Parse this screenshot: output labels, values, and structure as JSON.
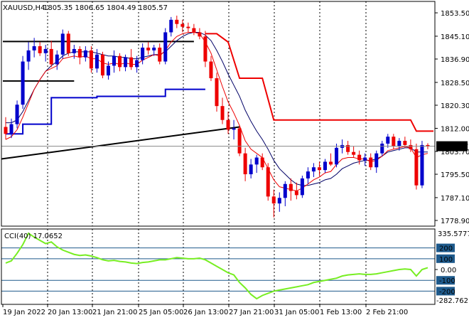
{
  "header": {
    "symbol": "XAUUSD,H4",
    "ohlc": "1805.35 1806.65 1804.49 1805.57"
  },
  "cci_header": "CCI(40) 17.0652",
  "colors": {
    "bull": "#0000cc",
    "bear": "#ee0000",
    "fast_ma": "#ee0000",
    "slow_ma": "#000066",
    "trend": "#000000",
    "cci": "#77ee22",
    "grid": "#000000",
    "level": "#1e5a8c"
  },
  "chart_data": [
    {
      "type": "candlestick",
      "title": "XAUUSD,H4",
      "ylim": [
        1778.9,
        1857.0
      ],
      "y_ticks": [
        "1853.50",
        "1845.10",
        "1836.90",
        "1828.50",
        "1820.30",
        "1812.00",
        "1803.70",
        "1795.50",
        "1787.10",
        "1778.90"
      ],
      "x_labels": [
        "19 Jan 2022",
        "20 Jan 13:00",
        "21 Jan 21:00",
        "25 Jan 05:00",
        "26 Jan 13:00",
        "27 Jan 21:00",
        "31 Jan 05:00",
        "1 Feb 13:00",
        "2 Feb 21:00"
      ],
      "current_price": "1805.57",
      "candles": [
        [
          1812.5,
          1816.0,
          1808.0,
          1810.0
        ],
        [
          1810.0,
          1815.5,
          1808.5,
          1813.5
        ],
        [
          1813.5,
          1822.0,
          1812.0,
          1820.5
        ],
        [
          1820.5,
          1838.0,
          1819.0,
          1836.0
        ],
        [
          1836.0,
          1843.0,
          1833.0,
          1840.0
        ],
        [
          1840.0,
          1844.5,
          1837.5,
          1841.5
        ],
        [
          1841.5,
          1843.0,
          1838.0,
          1839.0
        ],
        [
          1839.0,
          1842.0,
          1836.0,
          1840.5
        ],
        [
          1840.5,
          1843.5,
          1834.0,
          1835.0
        ],
        [
          1835.0,
          1840.0,
          1833.0,
          1838.5
        ],
        [
          1838.5,
          1847.5,
          1837.0,
          1846.0
        ],
        [
          1846.0,
          1847.0,
          1838.0,
          1839.0
        ],
        [
          1839.0,
          1842.0,
          1837.0,
          1840.5
        ],
        [
          1840.5,
          1841.5,
          1835.0,
          1837.5
        ],
        [
          1837.5,
          1841.5,
          1836.0,
          1840.0
        ],
        [
          1840.0,
          1841.5,
          1832.0,
          1833.5
        ],
        [
          1833.5,
          1840.5,
          1832.0,
          1838.5
        ],
        [
          1838.5,
          1839.5,
          1830.0,
          1831.0
        ],
        [
          1831.0,
          1836.0,
          1829.5,
          1834.5
        ],
        [
          1834.5,
          1840.0,
          1832.0,
          1838.0
        ],
        [
          1838.0,
          1839.0,
          1832.5,
          1834.0
        ],
        [
          1834.0,
          1838.5,
          1832.5,
          1837.5
        ],
        [
          1837.5,
          1840.5,
          1833.0,
          1834.0
        ],
        [
          1834.0,
          1838.0,
          1832.0,
          1836.5
        ],
        [
          1836.5,
          1842.5,
          1835.0,
          1841.0
        ],
        [
          1841.0,
          1843.0,
          1838.5,
          1840.0
        ],
        [
          1840.0,
          1842.0,
          1838.0,
          1841.0
        ],
        [
          1841.0,
          1842.5,
          1835.0,
          1836.0
        ],
        [
          1836.0,
          1848.0,
          1835.0,
          1846.5
        ],
        [
          1846.5,
          1852.0,
          1845.0,
          1851.0
        ],
        [
          1851.0,
          1852.5,
          1848.0,
          1849.5
        ],
        [
          1849.5,
          1851.0,
          1846.5,
          1848.5
        ],
        [
          1848.5,
          1850.0,
          1846.5,
          1848.0
        ],
        [
          1848.0,
          1849.5,
          1845.5,
          1846.5
        ],
        [
          1846.5,
          1848.0,
          1844.0,
          1845.0
        ],
        [
          1845.0,
          1847.0,
          1834.0,
          1836.0
        ],
        [
          1836.0,
          1838.0,
          1829.0,
          1830.0
        ],
        [
          1830.0,
          1832.0,
          1818.0,
          1820.0
        ],
        [
          1820.0,
          1823.0,
          1813.5,
          1815.0
        ],
        [
          1815.0,
          1818.0,
          1810.0,
          1811.5
        ],
        [
          1811.5,
          1815.0,
          1808.0,
          1812.0
        ],
        [
          1812.0,
          1813.0,
          1802.0,
          1803.0
        ],
        [
          1803.0,
          1805.0,
          1793.0,
          1795.5
        ],
        [
          1795.5,
          1801.0,
          1794.0,
          1799.0
        ],
        [
          1799.0,
          1802.5,
          1796.0,
          1801.5
        ],
        [
          1801.5,
          1803.0,
          1797.0,
          1798.0
        ],
        [
          1798.0,
          1799.5,
          1786.0,
          1787.5
        ],
        [
          1787.5,
          1790.0,
          1780.0,
          1785.0
        ],
        [
          1785.0,
          1789.0,
          1782.0,
          1787.0
        ],
        [
          1787.0,
          1793.0,
          1784.0,
          1792.0
        ],
        [
          1792.0,
          1794.0,
          1786.0,
          1789.5
        ],
        [
          1789.5,
          1792.5,
          1786.5,
          1788.0
        ],
        [
          1788.0,
          1795.0,
          1787.0,
          1794.0
        ],
        [
          1794.0,
          1798.0,
          1792.0,
          1796.5
        ],
        [
          1796.5,
          1799.5,
          1794.5,
          1798.0
        ],
        [
          1798.0,
          1800.0,
          1795.0,
          1797.0
        ],
        [
          1797.0,
          1801.0,
          1796.0,
          1800.0
        ],
        [
          1800.0,
          1803.0,
          1798.5,
          1799.0
        ],
        [
          1799.0,
          1806.5,
          1798.0,
          1805.0
        ],
        [
          1805.0,
          1808.0,
          1803.0,
          1806.0
        ],
        [
          1806.0,
          1807.5,
          1802.5,
          1803.5
        ],
        [
          1803.5,
          1805.5,
          1801.5,
          1802.5
        ],
        [
          1802.5,
          1804.0,
          1799.0,
          1800.5
        ],
        [
          1800.5,
          1803.0,
          1798.5,
          1801.5
        ],
        [
          1801.5,
          1803.0,
          1797.0,
          1798.0
        ],
        [
          1798.0,
          1804.0,
          1796.0,
          1803.0
        ],
        [
          1803.0,
          1807.5,
          1802.0,
          1806.5
        ],
        [
          1806.5,
          1810.0,
          1805.0,
          1809.0
        ],
        [
          1809.0,
          1810.0,
          1804.5,
          1805.5
        ],
        [
          1805.5,
          1808.5,
          1804.0,
          1807.5
        ],
        [
          1807.5,
          1809.0,
          1805.0,
          1806.0
        ],
        [
          1806.0,
          1808.0,
          1803.5,
          1804.5
        ],
        [
          1804.5,
          1806.5,
          1790.0,
          1791.5
        ],
        [
          1791.5,
          1807.5,
          1790.5,
          1806.0
        ],
        [
          1806.0,
          1806.65,
          1804.49,
          1805.57
        ]
      ],
      "fast_ma": [
        1808.0,
        1809.0,
        1811.5,
        1816.0,
        1821.0,
        1826.0,
        1829.5,
        1832.5,
        1833.5,
        1834.5,
        1837.0,
        1837.5,
        1838.0,
        1837.5,
        1838.0,
        1837.0,
        1837.0,
        1835.5,
        1835.0,
        1835.5,
        1835.0,
        1835.5,
        1835.0,
        1835.0,
        1836.5,
        1837.5,
        1838.5,
        1838.0,
        1840.0,
        1843.0,
        1845.0,
        1846.0,
        1846.5,
        1846.5,
        1846.0,
        1843.0,
        1839.0,
        1833.0,
        1827.0,
        1821.5,
        1817.5,
        1813.0,
        1807.5,
        1804.5,
        1803.0,
        1801.5,
        1797.5,
        1793.5,
        1791.0,
        1790.5,
        1790.0,
        1789.5,
        1790.5,
        1792.0,
        1793.5,
        1794.5,
        1796.0,
        1796.5,
        1799.0,
        1801.0,
        1801.5,
        1801.5,
        1801.0,
        1801.0,
        1800.0,
        1800.5,
        1802.0,
        1804.0,
        1804.5,
        1805.0,
        1805.5,
        1805.0,
        1801.5,
        1802.5,
        1803.0
      ],
      "slow_ma": [
        1814.0,
        1814.0,
        1815.0,
        1818.0,
        1822.0,
        1826.0,
        1829.5,
        1832.5,
        1834.5,
        1836.0,
        1838.0,
        1839.0,
        1839.5,
        1839.5,
        1839.5,
        1839.5,
        1839.0,
        1838.5,
        1838.0,
        1838.0,
        1837.5,
        1837.5,
        1837.0,
        1837.0,
        1837.5,
        1838.0,
        1838.5,
        1838.5,
        1839.5,
        1841.5,
        1843.5,
        1845.0,
        1846.0,
        1846.5,
        1846.5,
        1845.5,
        1843.5,
        1840.0,
        1836.0,
        1831.5,
        1827.5,
        1823.5,
        1818.5,
        1814.5,
        1811.0,
        1808.0,
        1804.5,
        1800.5,
        1797.5,
        1795.5,
        1793.5,
        1792.0,
        1791.5,
        1791.5,
        1792.0,
        1792.5,
        1793.5,
        1794.0,
        1795.5,
        1797.5,
        1798.5,
        1799.5,
        1800.0,
        1800.5,
        1800.5,
        1801.0,
        1802.0,
        1803.5,
        1804.0,
        1804.5,
        1805.0,
        1805.0,
        1803.5,
        1803.5,
        1803.5
      ],
      "stop_line": [
        [
          [
            0,
            1810.0
          ],
          [
            3,
            1810.0
          ],
          [
            3,
            1813.5
          ],
          [
            8,
            1813.5
          ],
          [
            8,
            1823.0
          ],
          [
            16,
            1823.0
          ],
          [
            16,
            1823.5
          ],
          [
            28,
            1823.5
          ],
          [
            28,
            1826.0
          ],
          [
            35,
            1826.0
          ]
        ],
        [
          [
            35,
            1846.0
          ],
          [
            37,
            1846.0
          ],
          [
            39,
            1843.0
          ],
          [
            41,
            1830.0
          ],
          [
            45,
            1830.0
          ],
          [
            47,
            1815.0
          ],
          [
            71,
            1815.0
          ],
          [
            72,
            1811.0
          ],
          [
            75,
            1811.0
          ]
        ]
      ],
      "horizontal_levels": [
        {
          "value": 1843.2,
          "from": 0,
          "to": 33
        },
        {
          "value": 1829.0,
          "from": 0,
          "to": 12
        }
      ],
      "trendline": {
        "from": [
          0,
          1801.0
        ],
        "to": [
          41,
          1812.5
        ]
      }
    },
    {
      "type": "line",
      "title": "CCI(40) 17.0652",
      "ylim": [
        -282.762,
        335.5777
      ],
      "y_ticks": [
        "335.5777",
        "200",
        "100",
        "0.00",
        "-100",
        "-200",
        "-282.762"
      ],
      "levels": [
        200,
        100,
        -100,
        -200
      ],
      "values": [
        60,
        80,
        150,
        230,
        335,
        300,
        270,
        240,
        255,
        210,
        180,
        160,
        140,
        130,
        135,
        125,
        110,
        90,
        80,
        85,
        75,
        70,
        60,
        55,
        65,
        70,
        80,
        90,
        90,
        100,
        110,
        105,
        100,
        100,
        105,
        90,
        60,
        30,
        0,
        -30,
        -50,
        -120,
        -170,
        -230,
        -270,
        -240,
        -220,
        -200,
        -190,
        -180,
        -170,
        -160,
        -150,
        -140,
        -120,
        -110,
        -100,
        -90,
        -80,
        -60,
        -50,
        -45,
        -40,
        -45,
        -45,
        -40,
        -30,
        -20,
        -10,
        0,
        5,
        0,
        -60,
        0,
        17.0652
      ]
    }
  ]
}
